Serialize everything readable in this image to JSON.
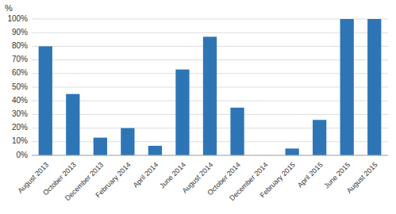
{
  "chart_data": {
    "type": "bar",
    "ylabel": "%",
    "categories": [
      "August 2013",
      "October 2013",
      "December 2013",
      "February 2014",
      "April 2014",
      "June 2014",
      "August 2014",
      "October 2014",
      "December 2014",
      "February 2015",
      "April 2015",
      "June 2015",
      "August 2015"
    ],
    "values": [
      80,
      45,
      13,
      20,
      7,
      63,
      87,
      35,
      0,
      5,
      26,
      100,
      100
    ],
    "color": "#2E75B6",
    "ylim": [
      0,
      100
    ],
    "yticks": [
      {
        "value": 0,
        "label": "0%"
      },
      {
        "value": 10,
        "label": "10%"
      },
      {
        "value": 20,
        "label": "20%"
      },
      {
        "value": 30,
        "label": "30%"
      },
      {
        "value": 40,
        "label": "40%"
      },
      {
        "value": 50,
        "label": "50%"
      },
      {
        "value": 60,
        "label": "60%"
      },
      {
        "value": 70,
        "label": "70%"
      },
      {
        "value": 80,
        "label": "80%"
      },
      {
        "value": 90,
        "label": "90%"
      },
      {
        "value": 100,
        "label": "100%"
      }
    ],
    "grid": true
  }
}
